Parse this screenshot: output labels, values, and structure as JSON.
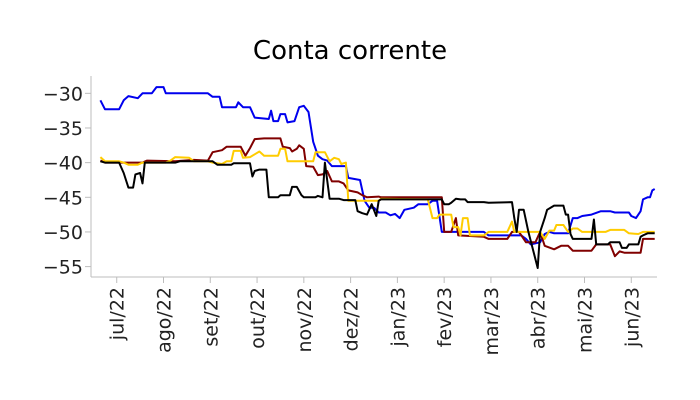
{
  "chart_data": {
    "type": "line",
    "title": "Conta corrente",
    "xlabel": "",
    "ylabel": "",
    "grid": false,
    "ylim": [
      -56.5,
      -27.5
    ],
    "xlim": [
      -0.2,
      11.9
    ],
    "x_ticks": [
      {
        "pos": 0.35,
        "label": "jul/22"
      },
      {
        "pos": 1.35,
        "label": "ago/22"
      },
      {
        "pos": 2.35,
        "label": "set/22"
      },
      {
        "pos": 3.35,
        "label": "out/22"
      },
      {
        "pos": 4.35,
        "label": "nov/22"
      },
      {
        "pos": 5.35,
        "label": "dez/22"
      },
      {
        "pos": 6.35,
        "label": "jan/23"
      },
      {
        "pos": 7.35,
        "label": "fev/23"
      },
      {
        "pos": 8.35,
        "label": "mar/23"
      },
      {
        "pos": 9.35,
        "label": "abr/23"
      },
      {
        "pos": 10.35,
        "label": "mai/23"
      },
      {
        "pos": 11.35,
        "label": "jun/23"
      }
    ],
    "y_ticks": [
      -30,
      -35,
      -40,
      -45,
      -50,
      -55
    ],
    "series": [
      {
        "color": "#0000ee",
        "points": [
          [
            0,
            -31
          ],
          [
            0.1,
            -32.3
          ],
          [
            0.4,
            -32.3
          ],
          [
            0.5,
            -31
          ],
          [
            0.6,
            -30.4
          ],
          [
            0.8,
            -30.7
          ],
          [
            0.9,
            -30
          ],
          [
            1.1,
            -30
          ],
          [
            1.2,
            -29.1
          ],
          [
            1.35,
            -29.1
          ],
          [
            1.4,
            -30
          ],
          [
            2.3,
            -30
          ],
          [
            2.4,
            -30.5
          ],
          [
            2.55,
            -30.5
          ],
          [
            2.6,
            -32
          ],
          [
            2.9,
            -32
          ],
          [
            2.95,
            -31.3
          ],
          [
            3.05,
            -32
          ],
          [
            3.2,
            -32
          ],
          [
            3.3,
            -33.5
          ],
          [
            3.6,
            -33.7
          ],
          [
            3.65,
            -32.5
          ],
          [
            3.7,
            -34
          ],
          [
            3.8,
            -34
          ],
          [
            3.85,
            -33
          ],
          [
            3.95,
            -33
          ],
          [
            4.0,
            -34.2
          ],
          [
            4.15,
            -34
          ],
          [
            4.25,
            -32
          ],
          [
            4.35,
            -31.8
          ],
          [
            4.45,
            -32.7
          ],
          [
            4.55,
            -37
          ],
          [
            4.65,
            -39
          ],
          [
            4.75,
            -39.5
          ],
          [
            4.85,
            -39.7
          ],
          [
            4.95,
            -40.5
          ],
          [
            5.25,
            -40.5
          ],
          [
            5.3,
            -42.2
          ],
          [
            5.55,
            -42.5
          ],
          [
            5.6,
            -44
          ],
          [
            5.65,
            -45.5
          ],
          [
            5.75,
            -46.5
          ],
          [
            5.85,
            -46.5
          ],
          [
            5.95,
            -47.2
          ],
          [
            6.1,
            -47.2
          ],
          [
            6.2,
            -47.6
          ],
          [
            6.3,
            -47.4
          ],
          [
            6.4,
            -48
          ],
          [
            6.5,
            -46.8
          ],
          [
            6.7,
            -46.5
          ],
          [
            6.8,
            -46
          ],
          [
            7.0,
            -46
          ],
          [
            7.1,
            -45.5
          ],
          [
            7.2,
            -45.5
          ],
          [
            7.3,
            -50
          ],
          [
            8.2,
            -50
          ],
          [
            8.3,
            -50.5
          ],
          [
            9.0,
            -50.5
          ],
          [
            9.1,
            -51
          ],
          [
            9.2,
            -51.8
          ],
          [
            9.4,
            -51.5
          ],
          [
            9.5,
            -50.3
          ],
          [
            9.6,
            -50
          ],
          [
            9.7,
            -50.2
          ],
          [
            10.0,
            -50.2
          ],
          [
            10.1,
            -48
          ],
          [
            10.2,
            -48
          ],
          [
            10.3,
            -47.7
          ],
          [
            10.5,
            -47.5
          ],
          [
            10.7,
            -47
          ],
          [
            10.9,
            -47
          ],
          [
            11.0,
            -47.2
          ],
          [
            11.3,
            -47.2
          ],
          [
            11.35,
            -47.7
          ],
          [
            11.45,
            -48
          ],
          [
            11.55,
            -47
          ],
          [
            11.6,
            -45.3
          ],
          [
            11.7,
            -45
          ],
          [
            11.75,
            -45
          ],
          [
            11.8,
            -44
          ],
          [
            11.85,
            -43.8
          ]
        ]
      },
      {
        "color": "#800000",
        "points": [
          [
            0,
            -39.7
          ],
          [
            0.1,
            -40
          ],
          [
            0.9,
            -40
          ],
          [
            1.0,
            -39.7
          ],
          [
            1.6,
            -39.8
          ],
          [
            2.0,
            -39.6
          ],
          [
            2.3,
            -39.7
          ],
          [
            2.4,
            -38.5
          ],
          [
            2.6,
            -38.2
          ],
          [
            2.7,
            -37.7
          ],
          [
            3.0,
            -37.7
          ],
          [
            3.1,
            -39
          ],
          [
            3.2,
            -37.9
          ],
          [
            3.3,
            -36.6
          ],
          [
            3.5,
            -36.5
          ],
          [
            3.85,
            -36.5
          ],
          [
            3.9,
            -37.7
          ],
          [
            4.05,
            -37.9
          ],
          [
            4.1,
            -38.4
          ],
          [
            4.2,
            -38
          ],
          [
            4.25,
            -37.5
          ],
          [
            4.35,
            -38
          ],
          [
            4.4,
            -40.5
          ],
          [
            4.55,
            -40.6
          ],
          [
            4.65,
            -41.8
          ],
          [
            4.75,
            -41.7
          ],
          [
            4.85,
            -41.2
          ],
          [
            4.95,
            -42.7
          ],
          [
            5.1,
            -42.7
          ],
          [
            5.2,
            -43
          ],
          [
            5.3,
            -44
          ],
          [
            5.5,
            -44.3
          ],
          [
            5.6,
            -44.7
          ],
          [
            5.7,
            -45
          ],
          [
            5.95,
            -44.9
          ],
          [
            6.0,
            -45
          ],
          [
            7.3,
            -45
          ],
          [
            7.35,
            -50
          ],
          [
            7.5,
            -50
          ],
          [
            7.6,
            -48
          ],
          [
            7.65,
            -50.5
          ],
          [
            8.2,
            -50.7
          ],
          [
            8.3,
            -51
          ],
          [
            8.7,
            -51
          ],
          [
            8.8,
            -50
          ],
          [
            8.95,
            -50
          ],
          [
            9.1,
            -51.5
          ],
          [
            9.3,
            -51.5
          ],
          [
            9.4,
            -50
          ],
          [
            9.5,
            -52
          ],
          [
            9.7,
            -52.5
          ],
          [
            9.85,
            -52
          ],
          [
            10.0,
            -52
          ],
          [
            10.1,
            -52.7
          ],
          [
            10.5,
            -52.7
          ],
          [
            10.6,
            -51.8
          ],
          [
            10.9,
            -51.8
          ],
          [
            11.0,
            -53.5
          ],
          [
            11.1,
            -52.8
          ],
          [
            11.2,
            -53
          ],
          [
            11.55,
            -53
          ],
          [
            11.6,
            -51
          ],
          [
            11.85,
            -51
          ]
        ]
      },
      {
        "color": "#ffcc00",
        "points": [
          [
            0,
            -39.2
          ],
          [
            0.1,
            -39.8
          ],
          [
            0.4,
            -39.8
          ],
          [
            0.5,
            -40
          ],
          [
            0.6,
            -40.3
          ],
          [
            0.8,
            -40.3
          ],
          [
            0.9,
            -40
          ],
          [
            1.4,
            -40
          ],
          [
            1.5,
            -39.7
          ],
          [
            1.6,
            -39.2
          ],
          [
            1.9,
            -39.3
          ],
          [
            2.0,
            -39.8
          ],
          [
            2.3,
            -39.8
          ],
          [
            2.4,
            -40
          ],
          [
            2.6,
            -40.2
          ],
          [
            2.7,
            -39.8
          ],
          [
            2.8,
            -39.8
          ],
          [
            2.85,
            -38.3
          ],
          [
            3.0,
            -38.3
          ],
          [
            3.05,
            -39.3
          ],
          [
            3.2,
            -39.2
          ],
          [
            3.3,
            -38.8
          ],
          [
            3.4,
            -38.4
          ],
          [
            3.5,
            -39
          ],
          [
            3.8,
            -39
          ],
          [
            3.85,
            -38
          ],
          [
            3.95,
            -38
          ],
          [
            4.0,
            -39.8
          ],
          [
            4.55,
            -39.8
          ],
          [
            4.6,
            -38.5
          ],
          [
            4.8,
            -38.5
          ],
          [
            4.9,
            -39.8
          ],
          [
            5.0,
            -39.3
          ],
          [
            5.1,
            -39.5
          ],
          [
            5.15,
            -40.2
          ],
          [
            5.25,
            -40
          ],
          [
            5.3,
            -45.5
          ],
          [
            5.95,
            -45.5
          ],
          [
            6.0,
            -45.2
          ],
          [
            7.0,
            -45.3
          ],
          [
            7.1,
            -48
          ],
          [
            7.2,
            -48
          ],
          [
            7.25,
            -47.5
          ],
          [
            7.5,
            -47.5
          ],
          [
            7.55,
            -49.3
          ],
          [
            7.65,
            -49.3
          ],
          [
            7.7,
            -50.5
          ],
          [
            7.75,
            -48
          ],
          [
            7.85,
            -48
          ],
          [
            7.9,
            -50.5
          ],
          [
            8.2,
            -50.5
          ],
          [
            8.3,
            -50
          ],
          [
            8.7,
            -50
          ],
          [
            8.8,
            -48.5
          ],
          [
            8.85,
            -50
          ],
          [
            9.4,
            -50
          ],
          [
            9.5,
            -51
          ],
          [
            9.6,
            -49.8
          ],
          [
            9.7,
            -49.8
          ],
          [
            9.75,
            -49
          ],
          [
            9.9,
            -49
          ],
          [
            10.0,
            -50
          ],
          [
            10.1,
            -49.5
          ],
          [
            10.2,
            -49.5
          ],
          [
            10.3,
            -50
          ],
          [
            10.8,
            -50
          ],
          [
            10.9,
            -49.7
          ],
          [
            11.2,
            -49.7
          ],
          [
            11.3,
            -50.2
          ],
          [
            11.5,
            -50.3
          ],
          [
            11.6,
            -50
          ],
          [
            11.85,
            -50
          ]
        ]
      },
      {
        "color": "#000000",
        "points": [
          [
            0,
            -39.8
          ],
          [
            0.1,
            -40
          ],
          [
            0.4,
            -40
          ],
          [
            0.5,
            -41.5
          ],
          [
            0.6,
            -43.6
          ],
          [
            0.7,
            -43.6
          ],
          [
            0.75,
            -41.7
          ],
          [
            0.85,
            -41.5
          ],
          [
            0.9,
            -43
          ],
          [
            0.95,
            -40
          ],
          [
            1.6,
            -40
          ],
          [
            1.7,
            -39.8
          ],
          [
            2.4,
            -39.8
          ],
          [
            2.5,
            -40.3
          ],
          [
            2.8,
            -40.3
          ],
          [
            2.85,
            -40.1
          ],
          [
            3.2,
            -40.1
          ],
          [
            3.25,
            -42
          ],
          [
            3.3,
            -41.2
          ],
          [
            3.4,
            -41
          ],
          [
            3.55,
            -41
          ],
          [
            3.6,
            -45
          ],
          [
            3.8,
            -45
          ],
          [
            3.85,
            -44.7
          ],
          [
            4.05,
            -44.7
          ],
          [
            4.1,
            -43.5
          ],
          [
            4.2,
            -43.5
          ],
          [
            4.3,
            -44.7
          ],
          [
            4.35,
            -45
          ],
          [
            4.6,
            -45
          ],
          [
            4.65,
            -44.8
          ],
          [
            4.75,
            -45
          ],
          [
            4.8,
            -40
          ],
          [
            4.9,
            -45.2
          ],
          [
            5.1,
            -45.2
          ],
          [
            5.2,
            -45.4
          ],
          [
            5.45,
            -45.4
          ],
          [
            5.5,
            -47
          ],
          [
            5.6,
            -47.3
          ],
          [
            5.7,
            -47.5
          ],
          [
            5.8,
            -46
          ],
          [
            5.9,
            -47.7
          ],
          [
            5.95,
            -45.5
          ],
          [
            6.0,
            -45.3
          ],
          [
            7.3,
            -45.3
          ],
          [
            7.35,
            -46
          ],
          [
            7.45,
            -46
          ],
          [
            7.5,
            -45.8
          ],
          [
            7.6,
            -45.2
          ],
          [
            7.7,
            -45.3
          ],
          [
            7.8,
            -45.3
          ],
          [
            7.85,
            -45.7
          ],
          [
            8.2,
            -45.7
          ],
          [
            8.3,
            -45.8
          ],
          [
            8.8,
            -45.7
          ],
          [
            8.85,
            -48
          ],
          [
            8.9,
            -50
          ],
          [
            8.95,
            -46.8
          ],
          [
            9.05,
            -46.8
          ],
          [
            9.15,
            -50
          ],
          [
            9.35,
            -55.2
          ],
          [
            9.4,
            -50
          ],
          [
            9.5,
            -48
          ],
          [
            9.55,
            -46.8
          ],
          [
            9.65,
            -46.4
          ],
          [
            9.7,
            -46.2
          ],
          [
            9.9,
            -46.2
          ],
          [
            9.95,
            -47.5
          ],
          [
            10.0,
            -47.5
          ],
          [
            10.05,
            -50.3
          ],
          [
            10.1,
            -51
          ],
          [
            10.5,
            -51
          ],
          [
            10.55,
            -48.2
          ],
          [
            10.6,
            -51.8
          ],
          [
            10.85,
            -51.8
          ],
          [
            10.9,
            -51.5
          ],
          [
            11.1,
            -51.5
          ],
          [
            11.15,
            -52.3
          ],
          [
            11.25,
            -52.3
          ],
          [
            11.3,
            -51.8
          ],
          [
            11.5,
            -51.8
          ],
          [
            11.55,
            -50.7
          ],
          [
            11.6,
            -50.5
          ],
          [
            11.7,
            -50.2
          ],
          [
            11.85,
            -50.2
          ]
        ]
      }
    ]
  }
}
